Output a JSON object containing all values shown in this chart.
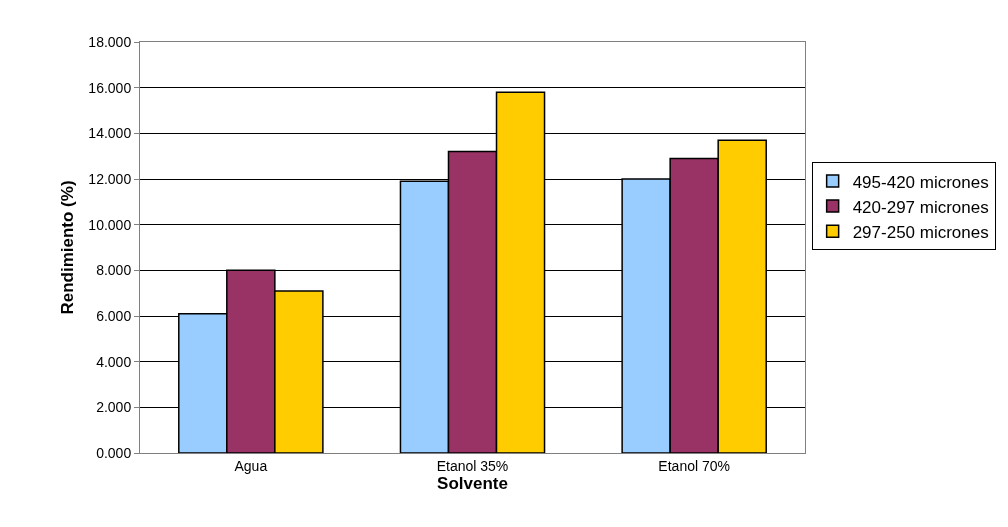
{
  "chart_data": {
    "type": "bar",
    "xlabel": "Solvente",
    "ylabel": "Rendimiento (%)",
    "categories": [
      "Agua",
      "Etanol 35%",
      "Etanol 70%"
    ],
    "series": [
      {
        "name": "495-420 micrones",
        "color": "#99ccff",
        "values": [
          6.1,
          11.9,
          12.0
        ]
      },
      {
        "name": "420-297 micrones",
        "color": "#993366",
        "values": [
          8.0,
          13.2,
          12.9
        ]
      },
      {
        "name": "297-250 micrones",
        "color": "#ffcc00",
        "values": [
          7.1,
          15.8,
          13.7
        ]
      }
    ],
    "ylim": [
      0,
      18
    ],
    "yticks": [
      {
        "value": 0,
        "label": "0.000"
      },
      {
        "value": 2,
        "label": "2.000"
      },
      {
        "value": 4,
        "label": "4.000"
      },
      {
        "value": 6,
        "label": "6.000"
      },
      {
        "value": 8,
        "label": "8.000"
      },
      {
        "value": 10,
        "label": "10.000"
      },
      {
        "value": 12,
        "label": "12.000"
      },
      {
        "value": 14,
        "label": "14.000"
      },
      {
        "value": 16,
        "label": "16.000"
      },
      {
        "value": 18,
        "label": "18.000"
      }
    ],
    "grid": "y",
    "legend": "right"
  }
}
